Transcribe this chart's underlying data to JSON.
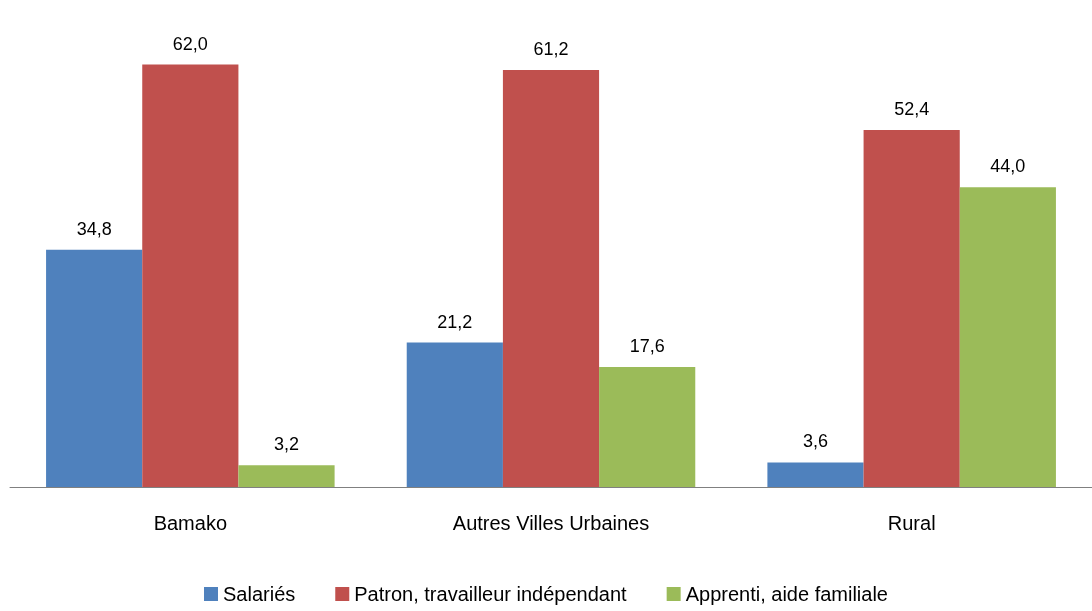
{
  "chart_data": {
    "type": "bar",
    "categories": [
      "Bamako",
      "Autres Villes Urbaines",
      "Rural"
    ],
    "series": [
      {
        "name": "Salariés",
        "color": "#4f81bd",
        "values": [
          34.8,
          21.2,
          3.6
        ],
        "value_labels": [
          "34,8",
          "21,2",
          "3,6"
        ]
      },
      {
        "name": "Patron, travailleur indépendant",
        "color": "#c0504d",
        "values": [
          62.0,
          61.2,
          52.4
        ],
        "value_labels": [
          "62,0",
          "61,2",
          "52,4"
        ]
      },
      {
        "name": "Apprenti, aide familiale",
        "color": "#9bbb59",
        "values": [
          3.2,
          17.6,
          44.0
        ],
        "value_labels": [
          "3,2",
          "17,6",
          "44,0"
        ]
      }
    ],
    "legend": "bottom",
    "grid": false
  }
}
